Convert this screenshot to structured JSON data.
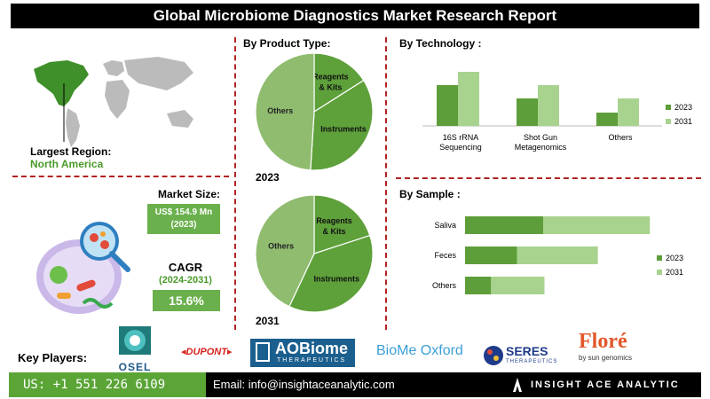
{
  "title": "Global Microbiome Diagnostics Market Research Report",
  "region": {
    "label": "Largest Region:",
    "value": "North America"
  },
  "market_size": {
    "label": "Market Size:",
    "value": "US$ 154.9 Mn",
    "year": "(2023)"
  },
  "cagr": {
    "label": "CAGR",
    "period": "(2024-2031)",
    "value": "15.6%"
  },
  "key_players_label": "Key Players:",
  "players": {
    "osel": "OSEL",
    "dupont": "DUPONT",
    "aobiome": "AOBiome",
    "aobiome_sub": "THERAPEUTICS",
    "biome_oxford": "BioMe Oxford",
    "seres": "SERES",
    "seres_sub": "THERAPEUTICS",
    "flore": "Floré",
    "flore_sub": "by sun genomics"
  },
  "footer": {
    "phone": "US: +1 551 226 6109",
    "email": "Email: info@insightaceanalytic.com",
    "brand": "INSIGHT ACE ANALYTIC"
  },
  "colors": {
    "dark_green": "#5e9e3a",
    "light_green": "#a8d38e",
    "pie_light": "#8fbc6f",
    "pie_dark": "#5ea03a",
    "accent_red": "#b22222"
  },
  "chart_data": [
    {
      "type": "pie",
      "title": "By Product Type:",
      "year_label": "2023",
      "labels": [
        "Reagents & Kits",
        "Instruments",
        "Others"
      ],
      "values": [
        16,
        35,
        49
      ]
    },
    {
      "type": "pie",
      "year_label": "2031",
      "labels": [
        "Reagents & Kits",
        "Instruments",
        "Others"
      ],
      "values": [
        20,
        37,
        43
      ]
    },
    {
      "type": "bar",
      "title": "By Technology :",
      "categories": [
        "16S rRNA Sequencing",
        "Shot Gun Metagenomics",
        "Others"
      ],
      "series": [
        {
          "name": "2023",
          "values": [
            46,
            31,
            15
          ]
        },
        {
          "name": "2031",
          "values": [
            61,
            46,
            31
          ]
        }
      ],
      "ylim": [
        0,
        70
      ],
      "legend": "right"
    },
    {
      "type": "bar",
      "orientation": "horizontal-stacked",
      "title": "By Sample :",
      "categories": [
        "Saliva",
        "Feces",
        "Others"
      ],
      "series": [
        {
          "name": "2023",
          "values": [
            60,
            40,
            20
          ]
        },
        {
          "name": "2031",
          "values": [
            82,
            62,
            41
          ]
        }
      ],
      "xlim": [
        0,
        150
      ],
      "legend": "right"
    }
  ]
}
